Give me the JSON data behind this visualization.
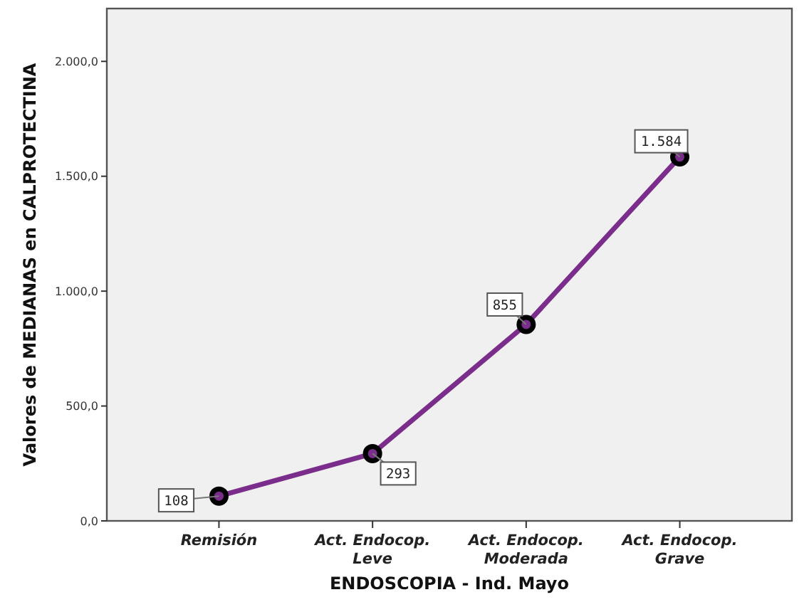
{
  "chart_data": {
    "type": "line",
    "xlabel": "ENDOSCOPIA - Ind. Mayo",
    "ylabel": "Valores de MEDIANAS en CALPROTECTINA",
    "categories": [
      "Remisión",
      "Act. Endocop.\nLeve",
      "Act. Endocop.\nModerada",
      "Act. Endocop.\nGrave"
    ],
    "values": [
      108,
      293,
      855,
      1584
    ],
    "value_labels": [
      "108",
      "293",
      "855",
      "1.584"
    ],
    "color": "#7b2d8b",
    "marker": "circle",
    "ylim": [
      0,
      2230
    ],
    "yticks": [
      {
        "value": 0,
        "label": "0,0"
      },
      {
        "value": 500,
        "label": "500,0"
      },
      {
        "value": 1000,
        "label": "1.000,0"
      },
      {
        "value": 1500,
        "label": "1.500,0"
      },
      {
        "value": 2000,
        "label": "2.000,0"
      }
    ],
    "grid": false
  }
}
